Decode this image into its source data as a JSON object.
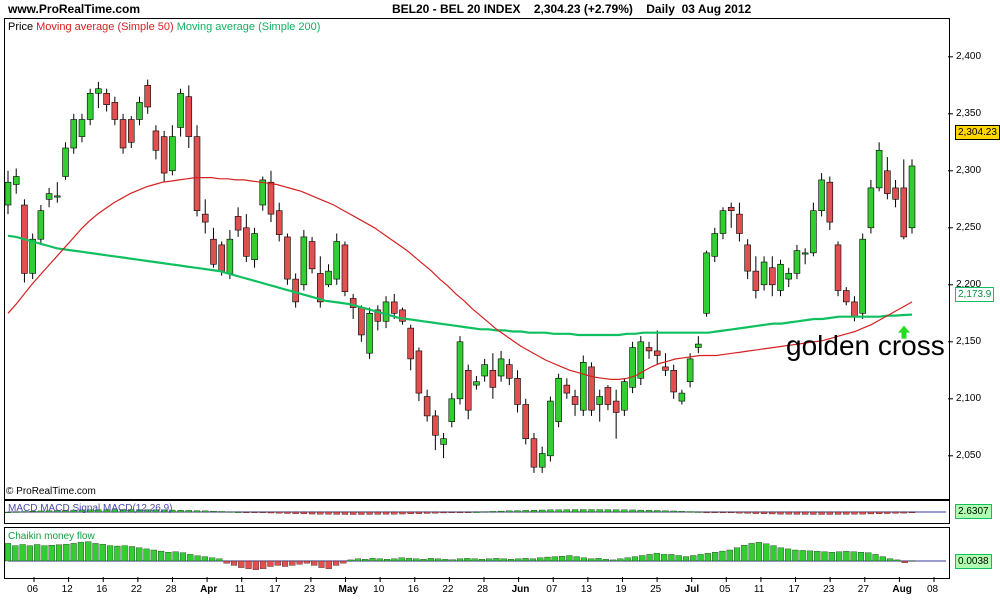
{
  "header": {
    "site": "www.ProRealTime.com",
    "instrument": "BEL20 - BEL 20 INDEX    2,304.23 (+2.79%)    Daily  03 Aug 2012"
  },
  "legend": {
    "price": "Price",
    "ma50": "Moving average (Simple 50)",
    "ma200": "Moving average (Simple 200)"
  },
  "copyright": "© ProRealTime.com",
  "annotation": "golden cross",
  "colors": {
    "up": "#33cc33",
    "down": "#e05050",
    "ma50": "#d42020",
    "ma200": "#10c060",
    "last_price_box": "#ffd700",
    "ma200_box": "#b0ffb0"
  },
  "chart_data": [
    {
      "type": "candlestick",
      "title": "BEL20 - BEL 20 INDEX",
      "y_ticks": [
        "2,050",
        "2,100",
        "2,150",
        "2,200",
        "2,250",
        "2,300",
        "2,350",
        "2,400"
      ],
      "ylim": [
        2020,
        2420
      ],
      "x_ticks": [
        "06",
        "12",
        "16",
        "22",
        "28",
        "Apr",
        "11",
        "17",
        "23",
        "May",
        "10",
        "16",
        "22",
        "28",
        "Jun",
        "07",
        "13",
        "19",
        "25",
        "Jul",
        "05",
        "11",
        "17",
        "23",
        "27",
        "Aug",
        "08"
      ],
      "last_price_label": "2,304.23",
      "ma200_label": "2,173.9",
      "candles": [
        {
          "o": 2270,
          "h": 2300,
          "l": 2262,
          "c": 2290
        },
        {
          "o": 2288,
          "h": 2302,
          "l": 2280,
          "c": 2295
        },
        {
          "o": 2270,
          "h": 2275,
          "l": 2202,
          "c": 2210
        },
        {
          "o": 2210,
          "h": 2245,
          "l": 2205,
          "c": 2240
        },
        {
          "o": 2240,
          "h": 2270,
          "l": 2235,
          "c": 2265
        },
        {
          "o": 2275,
          "h": 2285,
          "l": 2268,
          "c": 2280
        },
        {
          "o": 2278,
          "h": 2290,
          "l": 2272,
          "c": 2278
        },
        {
          "o": 2295,
          "h": 2325,
          "l": 2292,
          "c": 2320
        },
        {
          "o": 2320,
          "h": 2350,
          "l": 2315,
          "c": 2345
        },
        {
          "o": 2330,
          "h": 2350,
          "l": 2325,
          "c": 2345
        },
        {
          "o": 2345,
          "h": 2372,
          "l": 2340,
          "c": 2368
        },
        {
          "o": 2368,
          "h": 2378,
          "l": 2355,
          "c": 2372
        },
        {
          "o": 2368,
          "h": 2372,
          "l": 2352,
          "c": 2358
        },
        {
          "o": 2360,
          "h": 2365,
          "l": 2340,
          "c": 2345
        },
        {
          "o": 2345,
          "h": 2350,
          "l": 2315,
          "c": 2320
        },
        {
          "o": 2345,
          "h": 2348,
          "l": 2320,
          "c": 2325
        },
        {
          "o": 2345,
          "h": 2365,
          "l": 2340,
          "c": 2360
        },
        {
          "o": 2375,
          "h": 2380,
          "l": 2350,
          "c": 2356
        },
        {
          "o": 2335,
          "h": 2340,
          "l": 2310,
          "c": 2318
        },
        {
          "o": 2330,
          "h": 2335,
          "l": 2290,
          "c": 2298
        },
        {
          "o": 2300,
          "h": 2340,
          "l": 2296,
          "c": 2330
        },
        {
          "o": 2338,
          "h": 2372,
          "l": 2330,
          "c": 2368
        },
        {
          "o": 2365,
          "h": 2375,
          "l": 2320,
          "c": 2330
        },
        {
          "o": 2330,
          "h": 2340,
          "l": 2260,
          "c": 2265
        },
        {
          "o": 2262,
          "h": 2275,
          "l": 2245,
          "c": 2255
        },
        {
          "o": 2240,
          "h": 2250,
          "l": 2215,
          "c": 2218
        },
        {
          "o": 2235,
          "h": 2238,
          "l": 2208,
          "c": 2212
        },
        {
          "o": 2210,
          "h": 2248,
          "l": 2205,
          "c": 2240
        },
        {
          "o": 2260,
          "h": 2268,
          "l": 2242,
          "c": 2248
        },
        {
          "o": 2250,
          "h": 2262,
          "l": 2220,
          "c": 2225
        },
        {
          "o": 2222,
          "h": 2250,
          "l": 2215,
          "c": 2245
        },
        {
          "o": 2270,
          "h": 2295,
          "l": 2265,
          "c": 2292
        },
        {
          "o": 2290,
          "h": 2300,
          "l": 2255,
          "c": 2262
        },
        {
          "o": 2265,
          "h": 2272,
          "l": 2238,
          "c": 2244
        },
        {
          "o": 2242,
          "h": 2245,
          "l": 2200,
          "c": 2205
        },
        {
          "o": 2205,
          "h": 2210,
          "l": 2180,
          "c": 2185
        },
        {
          "o": 2200,
          "h": 2248,
          "l": 2195,
          "c": 2242
        },
        {
          "o": 2238,
          "h": 2242,
          "l": 2210,
          "c": 2214
        },
        {
          "o": 2210,
          "h": 2225,
          "l": 2180,
          "c": 2185
        },
        {
          "o": 2200,
          "h": 2218,
          "l": 2198,
          "c": 2212
        },
        {
          "o": 2205,
          "h": 2245,
          "l": 2200,
          "c": 2238
        },
        {
          "o": 2235,
          "h": 2238,
          "l": 2190,
          "c": 2194
        },
        {
          "o": 2188,
          "h": 2192,
          "l": 2170,
          "c": 2180
        },
        {
          "o": 2180,
          "h": 2182,
          "l": 2150,
          "c": 2156
        },
        {
          "o": 2140,
          "h": 2180,
          "l": 2135,
          "c": 2175
        },
        {
          "o": 2178,
          "h": 2182,
          "l": 2160,
          "c": 2168
        },
        {
          "o": 2168,
          "h": 2190,
          "l": 2162,
          "c": 2185
        },
        {
          "o": 2185,
          "h": 2192,
          "l": 2170,
          "c": 2175
        },
        {
          "o": 2178,
          "h": 2180,
          "l": 2165,
          "c": 2168
        },
        {
          "o": 2162,
          "h": 2165,
          "l": 2125,
          "c": 2135
        },
        {
          "o": 2142,
          "h": 2145,
          "l": 2098,
          "c": 2105
        },
        {
          "o": 2102,
          "h": 2108,
          "l": 2080,
          "c": 2085
        },
        {
          "o": 2085,
          "h": 2090,
          "l": 2055,
          "c": 2068
        },
        {
          "o": 2060,
          "h": 2070,
          "l": 2048,
          "c": 2065
        },
        {
          "o": 2080,
          "h": 2105,
          "l": 2075,
          "c": 2100
        },
        {
          "o": 2100,
          "h": 2155,
          "l": 2095,
          "c": 2150
        },
        {
          "o": 2125,
          "h": 2130,
          "l": 2082,
          "c": 2090
        },
        {
          "o": 2112,
          "h": 2120,
          "l": 2108,
          "c": 2115
        },
        {
          "o": 2120,
          "h": 2135,
          "l": 2115,
          "c": 2130
        },
        {
          "o": 2125,
          "h": 2140,
          "l": 2100,
          "c": 2110
        },
        {
          "o": 2120,
          "h": 2142,
          "l": 2115,
          "c": 2135
        },
        {
          "o": 2130,
          "h": 2135,
          "l": 2112,
          "c": 2118
        },
        {
          "o": 2118,
          "h": 2125,
          "l": 2088,
          "c": 2095
        },
        {
          "o": 2095,
          "h": 2100,
          "l": 2060,
          "c": 2065
        },
        {
          "o": 2065,
          "h": 2070,
          "l": 2035,
          "c": 2040
        },
        {
          "o": 2040,
          "h": 2058,
          "l": 2035,
          "c": 2052
        },
        {
          "o": 2050,
          "h": 2102,
          "l": 2045,
          "c": 2098
        },
        {
          "o": 2080,
          "h": 2122,
          "l": 2075,
          "c": 2118
        },
        {
          "o": 2112,
          "h": 2118,
          "l": 2100,
          "c": 2105
        },
        {
          "o": 2102,
          "h": 2108,
          "l": 2085,
          "c": 2095
        },
        {
          "o": 2090,
          "h": 2138,
          "l": 2085,
          "c": 2132
        },
        {
          "o": 2128,
          "h": 2132,
          "l": 2085,
          "c": 2090
        },
        {
          "o": 2095,
          "h": 2108,
          "l": 2080,
          "c": 2102
        },
        {
          "o": 2110,
          "h": 2112,
          "l": 2090,
          "c": 2095
        },
        {
          "o": 2098,
          "h": 2108,
          "l": 2065,
          "c": 2088
        },
        {
          "o": 2090,
          "h": 2118,
          "l": 2085,
          "c": 2115
        },
        {
          "o": 2110,
          "h": 2150,
          "l": 2105,
          "c": 2145
        },
        {
          "o": 2118,
          "h": 2155,
          "l": 2112,
          "c": 2150
        },
        {
          "o": 2145,
          "h": 2150,
          "l": 2135,
          "c": 2142
        },
        {
          "o": 2142,
          "h": 2160,
          "l": 2130,
          "c": 2138
        },
        {
          "o": 2128,
          "h": 2140,
          "l": 2120,
          "c": 2125
        },
        {
          "o": 2125,
          "h": 2130,
          "l": 2100,
          "c": 2106
        },
        {
          "o": 2098,
          "h": 2108,
          "l": 2095,
          "c": 2105
        },
        {
          "o": 2115,
          "h": 2140,
          "l": 2110,
          "c": 2135
        },
        {
          "o": 2145,
          "h": 2155,
          "l": 2140,
          "c": 2148
        },
        {
          "o": 2175,
          "h": 2230,
          "l": 2172,
          "c": 2228
        },
        {
          "o": 2225,
          "h": 2250,
          "l": 2220,
          "c": 2245
        },
        {
          "o": 2245,
          "h": 2268,
          "l": 2240,
          "c": 2265
        },
        {
          "o": 2268,
          "h": 2272,
          "l": 2250,
          "c": 2265
        },
        {
          "o": 2262,
          "h": 2272,
          "l": 2238,
          "c": 2245
        },
        {
          "o": 2235,
          "h": 2240,
          "l": 2205,
          "c": 2212
        },
        {
          "o": 2212,
          "h": 2225,
          "l": 2188,
          "c": 2195
        },
        {
          "o": 2200,
          "h": 2225,
          "l": 2195,
          "c": 2220
        },
        {
          "o": 2215,
          "h": 2225,
          "l": 2190,
          "c": 2200
        },
        {
          "o": 2195,
          "h": 2222,
          "l": 2190,
          "c": 2218
        },
        {
          "o": 2205,
          "h": 2215,
          "l": 2198,
          "c": 2210
        },
        {
          "o": 2210,
          "h": 2235,
          "l": 2205,
          "c": 2230
        },
        {
          "o": 2228,
          "h": 2232,
          "l": 2218,
          "c": 2228
        },
        {
          "o": 2228,
          "h": 2272,
          "l": 2225,
          "c": 2265
        },
        {
          "o": 2265,
          "h": 2298,
          "l": 2260,
          "c": 2292
        },
        {
          "o": 2290,
          "h": 2295,
          "l": 2248,
          "c": 2255
        },
        {
          "o": 2235,
          "h": 2238,
          "l": 2190,
          "c": 2195
        },
        {
          "o": 2195,
          "h": 2198,
          "l": 2182,
          "c": 2185
        },
        {
          "o": 2185,
          "h": 2190,
          "l": 2168,
          "c": 2172
        },
        {
          "o": 2175,
          "h": 2245,
          "l": 2170,
          "c": 2240
        },
        {
          "o": 2250,
          "h": 2292,
          "l": 2245,
          "c": 2285
        },
        {
          "o": 2285,
          "h": 2325,
          "l": 2282,
          "c": 2318
        },
        {
          "o": 2300,
          "h": 2312,
          "l": 2275,
          "c": 2280
        },
        {
          "o": 2285,
          "h": 2292,
          "l": 2268,
          "c": 2275
        },
        {
          "o": 2285,
          "h": 2310,
          "l": 2240,
          "c": 2242
        },
        {
          "o": 2250,
          "h": 2310,
          "l": 2245,
          "c": 2304.23
        }
      ],
      "ma50": [
        2175,
        2183,
        2192,
        2201,
        2209,
        2217,
        2225,
        2233,
        2241,
        2249,
        2256,
        2262,
        2267,
        2272,
        2276,
        2280,
        2283,
        2286,
        2288,
        2290,
        2291,
        2292,
        2293,
        2294,
        2294,
        2294,
        2293,
        2293,
        2292,
        2292,
        2291,
        2290,
        2289,
        2288,
        2286,
        2284,
        2282,
        2279,
        2276,
        2273,
        2270,
        2266,
        2262,
        2258,
        2254,
        2250,
        2245,
        2240,
        2235,
        2230,
        2224,
        2218,
        2212,
        2205,
        2199,
        2192,
        2186,
        2179,
        2173,
        2167,
        2161,
        2156,
        2151,
        2146,
        2142,
        2138,
        2134,
        2131,
        2128,
        2125,
        2123,
        2121,
        2119,
        2118,
        2117,
        2117,
        2118,
        2120,
        2124,
        2128,
        2131,
        2133,
        2135,
        2136,
        2137,
        2138,
        2138,
        2138,
        2139,
        2140,
        2141,
        2142,
        2143,
        2144,
        2145,
        2146,
        2147,
        2148,
        2149,
        2150,
        2151,
        2153,
        2155,
        2157,
        2159,
        2162,
        2165,
        2169,
        2173,
        2177,
        2181,
        2185
      ],
      "ma200": [
        2243,
        2242,
        2240,
        2238,
        2236,
        2234,
        2232,
        2231,
        2230,
        2229,
        2228,
        2227,
        2226,
        2225,
        2224,
        2223,
        2222,
        2221,
        2220,
        2219,
        2218,
        2217,
        2216,
        2215,
        2214,
        2213,
        2212,
        2210,
        2208,
        2206,
        2204,
        2202,
        2200,
        2198,
        2196,
        2194,
        2192,
        2190,
        2188,
        2186,
        2185,
        2184,
        2183,
        2181,
        2179,
        2177,
        2175,
        2173,
        2171,
        2170,
        2169,
        2168,
        2167,
        2166,
        2165,
        2164,
        2163,
        2162,
        2161,
        2161,
        2160,
        2160,
        2159,
        2159,
        2158,
        2158,
        2158,
        2157,
        2157,
        2157,
        2156,
        2156,
        2156,
        2156,
        2156,
        2156,
        2157,
        2157,
        2158,
        2158,
        2158,
        2158,
        2158,
        2158,
        2158,
        2158,
        2158,
        2159,
        2160,
        2161,
        2162,
        2163,
        2164,
        2165,
        2166,
        2166,
        2167,
        2168,
        2169,
        2170,
        2170,
        2171,
        2172,
        2172,
        2172,
        2172,
        2172,
        2172,
        2173,
        2173,
        2173.5,
        2173.9
      ]
    },
    {
      "type": "bar",
      "title": "MACD MACD Signal",
      "label": "MACD MACD Signal MACD(12,26,9)",
      "value_label": "2.6307"
    },
    {
      "type": "bar",
      "title": "Chaikin money flow",
      "label": "Chaikin money flow",
      "value_label": "0.0038",
      "values": [
        0.8,
        0.7,
        0.75,
        0.7,
        0.75,
        0.7,
        0.72,
        0.74,
        0.76,
        0.8,
        0.86,
        0.88,
        0.8,
        0.76,
        0.7,
        0.68,
        0.7,
        0.66,
        0.6,
        0.55,
        0.5,
        0.45,
        0.4,
        0.42,
        0.38,
        0.3,
        0.24,
        0.2,
        0.15,
        0.1,
        -0.1,
        -0.2,
        -0.3,
        -0.35,
        -0.4,
        -0.35,
        -0.25,
        -0.2,
        -0.25,
        -0.2,
        -0.15,
        -0.1,
        -0.2,
        -0.3,
        -0.35,
        -0.2,
        -0.1,
        0.05,
        0.1,
        0.08,
        0.12,
        0.1,
        0.08,
        0.1,
        0.15,
        0.12,
        0.1,
        0.08,
        0.12,
        0.1,
        0.08,
        0.06,
        0.1,
        0.12,
        0.1,
        0.08,
        0.1,
        0.12,
        0.1,
        0.08,
        0.1,
        0.12,
        0.1,
        0.15,
        0.18,
        0.2,
        0.22,
        0.25,
        0.2,
        0.15,
        0.1,
        0.12,
        0.08,
        0.05,
        0.1,
        0.15,
        0.2,
        0.25,
        0.3,
        0.35,
        0.3,
        0.3,
        0.25,
        0.2,
        0.25,
        0.3,
        0.35,
        0.4,
        0.45,
        0.5,
        0.6,
        0.72,
        0.8,
        0.85,
        0.78,
        0.7,
        0.6,
        0.55,
        0.5,
        0.48,
        0.46,
        0.44,
        0.42,
        0.4,
        0.42,
        0.44,
        0.42,
        0.4,
        0.38,
        0.3,
        0.2,
        0.1,
        0.05,
        -0.08,
        0.01
      ]
    }
  ]
}
